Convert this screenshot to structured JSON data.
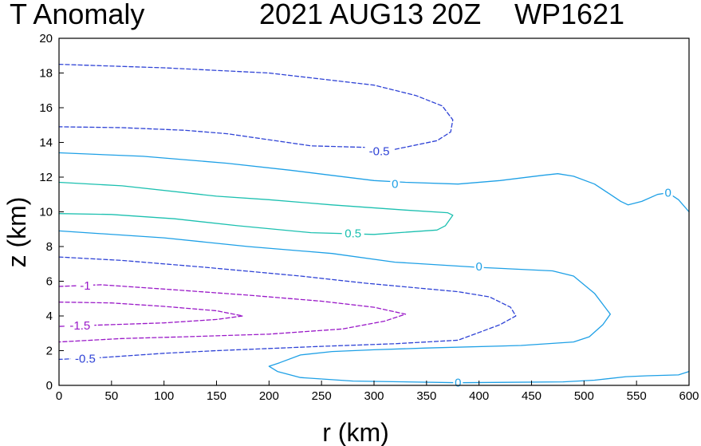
{
  "chart_data": {
    "type": "contour",
    "title_left": "T Anomaly",
    "title_date": "2021 AUG13 20Z",
    "title_storm": "WP1621",
    "xlabel": "r (km)",
    "ylabel": "z (km)",
    "xlim": [
      0,
      600
    ],
    "ylim": [
      0,
      20
    ],
    "xticks": [
      "0",
      "50",
      "100",
      "150",
      "200",
      "250",
      "300",
      "350",
      "400",
      "450",
      "500",
      "550",
      "600"
    ],
    "yticks": [
      "0",
      "2",
      "4",
      "6",
      "8",
      "10",
      "12",
      "14",
      "16",
      "18",
      "20"
    ],
    "colors": {
      "neg_0_5": "#2f43d6",
      "zero": "#1ea0e6",
      "pos_0_5": "#1cc0b0",
      "neg_1": "#9a19c8",
      "neg_1_5": "#9a19c8"
    },
    "contours": [
      {
        "level": "-0.5",
        "color_key": "neg_0_5",
        "dashed": true,
        "points": [
          [
            0,
            18.5
          ],
          [
            100,
            18.3
          ],
          [
            200,
            18.0
          ],
          [
            300,
            17.3
          ],
          [
            340,
            16.7
          ],
          [
            365,
            16.1
          ],
          [
            375,
            15.3
          ],
          [
            373,
            14.6
          ],
          [
            360,
            14.1
          ],
          [
            320,
            13.6
          ],
          [
            300,
            13.7
          ],
          [
            240,
            13.8
          ],
          [
            160,
            14.5
          ],
          [
            120,
            14.7
          ],
          [
            60,
            14.85
          ],
          [
            0,
            14.9
          ]
        ]
      },
      {
        "level": "0",
        "color_key": "zero",
        "dashed": false,
        "points": [
          [
            0,
            13.4
          ],
          [
            80,
            13.2
          ],
          [
            160,
            12.8
          ],
          [
            220,
            12.4
          ],
          [
            260,
            12.1
          ],
          [
            300,
            11.8
          ],
          [
            330,
            11.7
          ],
          [
            380,
            11.6
          ],
          [
            420,
            11.8
          ],
          [
            460,
            12.1
          ],
          [
            475,
            12.2
          ],
          [
            490,
            12.05
          ],
          [
            510,
            11.6
          ],
          [
            525,
            11.0
          ],
          [
            535,
            10.6
          ],
          [
            542,
            10.4
          ],
          [
            555,
            10.6
          ],
          [
            570,
            11.0
          ],
          [
            580,
            11.1
          ],
          [
            590,
            10.7
          ],
          [
            600,
            10.0
          ]
        ]
      },
      {
        "level": "0.5",
        "color_key": "pos_0_5",
        "dashed": false,
        "points": [
          [
            0,
            11.7
          ],
          [
            60,
            11.5
          ],
          [
            150,
            10.9
          ],
          [
            200,
            10.7
          ],
          [
            260,
            10.4
          ],
          [
            330,
            10.1
          ],
          [
            370,
            9.95
          ],
          [
            375,
            9.8
          ],
          [
            368,
            9.2
          ],
          [
            360,
            8.95
          ],
          [
            300,
            8.7
          ],
          [
            240,
            8.8
          ],
          [
            170,
            9.2
          ],
          [
            110,
            9.6
          ],
          [
            50,
            9.85
          ],
          [
            0,
            9.9
          ]
        ]
      },
      {
        "level": "0",
        "color_key": "zero",
        "dashed": false,
        "points": [
          [
            0,
            8.9
          ],
          [
            100,
            8.5
          ],
          [
            180,
            8.0
          ],
          [
            260,
            7.6
          ],
          [
            320,
            7.1
          ],
          [
            400,
            6.8
          ],
          [
            470,
            6.6
          ],
          [
            490,
            6.3
          ],
          [
            510,
            5.3
          ],
          [
            520,
            4.5
          ],
          [
            525,
            4.1
          ],
          [
            518,
            3.5
          ],
          [
            505,
            2.8
          ],
          [
            490,
            2.5
          ],
          [
            440,
            2.3
          ],
          [
            350,
            2.15
          ],
          [
            300,
            2.05
          ],
          [
            260,
            1.95
          ],
          [
            230,
            1.75
          ],
          [
            210,
            1.3
          ],
          [
            200,
            1.1
          ],
          [
            208,
            0.8
          ],
          [
            230,
            0.45
          ],
          [
            280,
            0.25
          ],
          [
            380,
            0.15
          ],
          [
            480,
            0.2
          ],
          [
            510,
            0.3
          ],
          [
            540,
            0.5
          ],
          [
            560,
            0.55
          ],
          [
            590,
            0.6
          ],
          [
            600,
            0.8
          ]
        ]
      },
      {
        "level": "-0.5",
        "color_key": "neg_0_5",
        "dashed": true,
        "points": [
          [
            0,
            7.4
          ],
          [
            60,
            7.2
          ],
          [
            140,
            6.8
          ],
          [
            230,
            6.3
          ],
          [
            290,
            5.9
          ],
          [
            380,
            5.4
          ],
          [
            410,
            5.1
          ],
          [
            430,
            4.5
          ],
          [
            435,
            4.0
          ],
          [
            420,
            3.5
          ],
          [
            400,
            3.05
          ],
          [
            380,
            2.6
          ],
          [
            320,
            2.4
          ],
          [
            250,
            2.25
          ],
          [
            150,
            2.0
          ],
          [
            100,
            1.85
          ],
          [
            40,
            1.6
          ],
          [
            0,
            1.5
          ]
        ]
      },
      {
        "level": "-1",
        "color_key": "neg_1",
        "dashed": true,
        "points": [
          [
            0,
            5.7
          ],
          [
            40,
            5.8
          ],
          [
            100,
            5.55
          ],
          [
            180,
            5.2
          ],
          [
            250,
            4.85
          ],
          [
            300,
            4.5
          ],
          [
            330,
            4.1
          ],
          [
            310,
            3.7
          ],
          [
            270,
            3.25
          ],
          [
            200,
            2.95
          ],
          [
            120,
            2.8
          ],
          [
            60,
            2.7
          ],
          [
            0,
            2.5
          ]
        ]
      },
      {
        "level": "-1.5",
        "color_key": "neg_1_5",
        "dashed": true,
        "points": [
          [
            0,
            4.8
          ],
          [
            50,
            4.75
          ],
          [
            100,
            4.55
          ],
          [
            150,
            4.3
          ],
          [
            175,
            4.0
          ],
          [
            150,
            3.8
          ],
          [
            100,
            3.6
          ],
          [
            50,
            3.5
          ],
          [
            0,
            3.4
          ]
        ]
      }
    ],
    "contour_labels": [
      {
        "text": "-0.5",
        "x": 305,
        "y": 13.5,
        "color_key": "neg_0_5"
      },
      {
        "text": "0",
        "x": 320,
        "y": 11.6,
        "color_key": "zero"
      },
      {
        "text": "0",
        "x": 580,
        "y": 11.1,
        "color_key": "zero"
      },
      {
        "text": "0.5",
        "x": 280,
        "y": 8.75,
        "color_key": "pos_0_5"
      },
      {
        "text": "0",
        "x": 400,
        "y": 6.85,
        "color_key": "zero"
      },
      {
        "text": "-1",
        "x": 25,
        "y": 5.75,
        "color_key": "neg_1"
      },
      {
        "text": "-1.5",
        "x": 20,
        "y": 3.45,
        "color_key": "neg_1_5"
      },
      {
        "text": "-0.5",
        "x": 25,
        "y": 1.55,
        "color_key": "neg_0_5"
      },
      {
        "text": "0",
        "x": 380,
        "y": 0.15,
        "color_key": "zero"
      }
    ]
  }
}
